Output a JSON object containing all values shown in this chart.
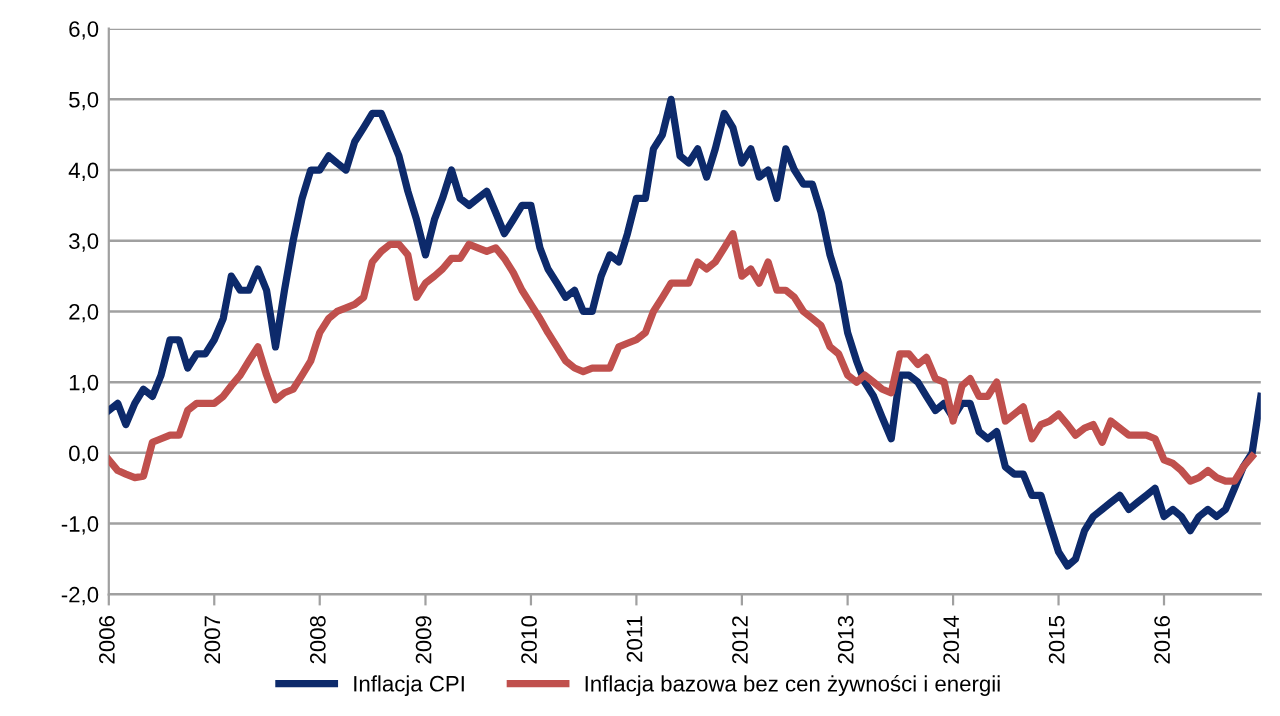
{
  "chart_data": {
    "type": "line",
    "x": [
      "2006-01",
      "2006-02",
      "2006-03",
      "2006-04",
      "2006-05",
      "2006-06",
      "2006-07",
      "2006-08",
      "2006-09",
      "2006-10",
      "2006-11",
      "2006-12",
      "2007-01",
      "2007-02",
      "2007-03",
      "2007-04",
      "2007-05",
      "2007-06",
      "2007-07",
      "2007-08",
      "2007-09",
      "2007-10",
      "2007-11",
      "2007-12",
      "2008-01",
      "2008-02",
      "2008-03",
      "2008-04",
      "2008-05",
      "2008-06",
      "2008-07",
      "2008-08",
      "2008-09",
      "2008-10",
      "2008-11",
      "2008-12",
      "2009-01",
      "2009-02",
      "2009-03",
      "2009-04",
      "2009-05",
      "2009-06",
      "2009-07",
      "2009-08",
      "2009-09",
      "2009-10",
      "2009-11",
      "2009-12",
      "2010-01",
      "2010-02",
      "2010-03",
      "2010-04",
      "2010-05",
      "2010-06",
      "2010-07",
      "2010-08",
      "2010-09",
      "2010-10",
      "2010-11",
      "2010-12",
      "2011-01",
      "2011-02",
      "2011-03",
      "2011-04",
      "2011-05",
      "2011-06",
      "2011-07",
      "2011-08",
      "2011-09",
      "2011-10",
      "2011-11",
      "2011-12",
      "2012-01",
      "2012-02",
      "2012-03",
      "2012-04",
      "2012-05",
      "2012-06",
      "2012-07",
      "2012-08",
      "2012-09",
      "2012-10",
      "2012-11",
      "2012-12",
      "2013-01",
      "2013-02",
      "2013-03",
      "2013-04",
      "2013-05",
      "2013-06",
      "2013-07",
      "2013-08",
      "2013-09",
      "2013-10",
      "2013-11",
      "2013-12",
      "2014-01",
      "2014-02",
      "2014-03",
      "2014-04",
      "2014-05",
      "2014-06",
      "2014-07",
      "2014-08",
      "2014-09",
      "2014-10",
      "2014-11",
      "2014-12",
      "2015-01",
      "2015-02",
      "2015-03",
      "2015-04",
      "2015-05",
      "2015-06",
      "2015-07",
      "2015-08",
      "2015-09",
      "2015-10",
      "2015-11",
      "2015-12",
      "2016-01",
      "2016-02",
      "2016-03",
      "2016-04",
      "2016-05",
      "2016-06",
      "2016-07",
      "2016-08",
      "2016-09",
      "2016-10",
      "2016-11",
      "2016-12"
    ],
    "series": [
      {
        "name": "Inflacja CPI",
        "color": "#0d2a6b",
        "values": [
          0.6,
          0.7,
          0.4,
          0.7,
          0.9,
          0.8,
          1.1,
          1.6,
          1.6,
          1.2,
          1.4,
          1.4,
          1.6,
          1.9,
          2.5,
          2.3,
          2.3,
          2.6,
          2.3,
          1.5,
          2.3,
          3.0,
          3.6,
          4.0,
          4.0,
          4.2,
          4.1,
          4.0,
          4.4,
          4.6,
          4.8,
          4.8,
          4.5,
          4.2,
          3.7,
          3.3,
          2.8,
          3.3,
          3.6,
          4.0,
          3.6,
          3.5,
          3.6,
          3.7,
          3.4,
          3.1,
          3.3,
          3.5,
          3.5,
          2.9,
          2.6,
          2.4,
          2.2,
          2.3,
          2.0,
          2.0,
          2.5,
          2.8,
          2.7,
          3.1,
          3.6,
          3.6,
          4.3,
          4.5,
          5.0,
          4.2,
          4.1,
          4.3,
          3.9,
          4.3,
          4.8,
          4.6,
          4.1,
          4.3,
          3.9,
          4.0,
          3.6,
          4.3,
          4.0,
          3.8,
          3.8,
          3.4,
          2.8,
          2.4,
          1.7,
          1.3,
          1.0,
          0.8,
          0.5,
          0.2,
          1.1,
          1.1,
          1.0,
          0.8,
          0.6,
          0.7,
          0.5,
          0.7,
          0.7,
          0.3,
          0.2,
          0.3,
          -0.2,
          -0.3,
          -0.3,
          -0.6,
          -0.6,
          -1.0,
          -1.4,
          -1.6,
          -1.5,
          -1.1,
          -0.9,
          -0.8,
          -0.7,
          -0.6,
          -0.8,
          -0.7,
          -0.6,
          -0.5,
          -0.9,
          -0.8,
          -0.9,
          -1.1,
          -0.9,
          -0.8,
          -0.9,
          -0.8,
          -0.5,
          -0.2,
          0.0,
          0.8
        ]
      },
      {
        "name": "Inflacja bazowa bez cen żywności i energii",
        "color": "#c0504d",
        "values": [
          -0.1,
          -0.25,
          -0.3,
          -0.35,
          -0.33,
          0.15,
          0.2,
          0.25,
          0.25,
          0.6,
          0.7,
          0.7,
          0.7,
          0.8,
          0.95,
          1.1,
          1.3,
          1.5,
          1.1,
          0.75,
          0.85,
          0.9,
          1.1,
          1.3,
          1.7,
          1.9,
          2.0,
          2.05,
          2.1,
          2.2,
          2.7,
          2.85,
          2.95,
          2.95,
          2.8,
          2.2,
          2.4,
          2.5,
          2.6,
          2.75,
          2.75,
          2.95,
          2.9,
          2.85,
          2.9,
          2.75,
          2.55,
          2.3,
          2.1,
          1.9,
          1.7,
          1.5,
          1.3,
          1.2,
          1.15,
          1.2,
          1.2,
          1.2,
          1.5,
          1.55,
          1.6,
          1.7,
          2.0,
          2.2,
          2.4,
          2.4,
          2.4,
          2.7,
          2.6,
          2.7,
          2.9,
          3.1,
          2.5,
          2.6,
          2.4,
          2.7,
          2.3,
          2.3,
          2.2,
          2.0,
          1.9,
          1.8,
          1.5,
          1.4,
          1.1,
          1.0,
          1.1,
          1.0,
          0.9,
          0.85,
          1.4,
          1.4,
          1.25,
          1.35,
          1.05,
          1.0,
          0.45,
          0.95,
          1.05,
          0.8,
          0.8,
          1.0,
          0.45,
          0.55,
          0.65,
          0.2,
          0.4,
          0.45,
          0.55,
          0.4,
          0.25,
          0.35,
          0.4,
          0.15,
          0.45,
          0.35,
          0.25,
          0.25,
          0.25,
          0.2,
          -0.1,
          -0.15,
          -0.25,
          -0.4,
          -0.35,
          -0.25,
          -0.35,
          -0.4,
          -0.4,
          -0.2,
          -0.05,
          null
        ]
      }
    ],
    "xlim": [
      "2006-01",
      "2016-12"
    ],
    "xticks": [
      "2006",
      "2007",
      "2008",
      "2009",
      "2010",
      "2011",
      "2012",
      "2013",
      "2014",
      "2015",
      "2016"
    ],
    "ylim": [
      -2,
      6
    ],
    "yticks": [
      {
        "value": -2,
        "label": "-2,0"
      },
      {
        "value": -1,
        "label": "-1,0"
      },
      {
        "value": 0,
        "label": "0,0"
      },
      {
        "value": 1,
        "label": "1,0"
      },
      {
        "value": 2,
        "label": "2,0"
      },
      {
        "value": 3,
        "label": "3,0"
      },
      {
        "value": 4,
        "label": "4,0"
      },
      {
        "value": 5,
        "label": "5,0"
      },
      {
        "value": 6,
        "label": "6,0"
      }
    ],
    "grid": "y",
    "legend": "bottom",
    "marker": "none",
    "line_style": "solid"
  }
}
